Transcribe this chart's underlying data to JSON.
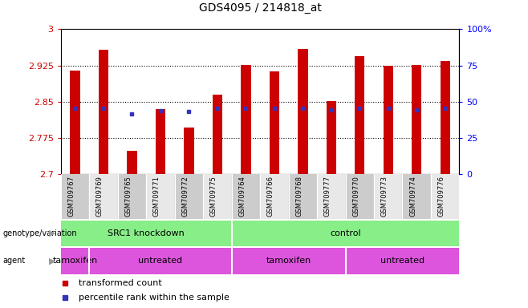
{
  "title": "GDS4095 / 214818_at",
  "samples": [
    "GSM709767",
    "GSM709769",
    "GSM709765",
    "GSM709771",
    "GSM709772",
    "GSM709775",
    "GSM709764",
    "GSM709766",
    "GSM709768",
    "GSM709777",
    "GSM709770",
    "GSM709773",
    "GSM709774",
    "GSM709776"
  ],
  "bar_values": [
    2.915,
    2.957,
    2.748,
    2.835,
    2.797,
    2.865,
    2.926,
    2.913,
    2.959,
    2.852,
    2.945,
    2.925,
    2.926,
    2.935
  ],
  "blue_values": [
    2.836,
    2.836,
    2.824,
    2.832,
    2.83,
    2.836,
    2.836,
    2.836,
    2.836,
    2.833,
    2.836,
    2.836,
    2.833,
    2.836
  ],
  "ymin": 2.7,
  "ymax": 3.0,
  "yticks": [
    2.7,
    2.775,
    2.85,
    2.925,
    3.0
  ],
  "ytick_labels": [
    "2.7",
    "2.775",
    "2.85",
    "2.925",
    "3"
  ],
  "right_ytick_labels": [
    "0",
    "25",
    "50",
    "75",
    "100%"
  ],
  "bar_color": "#cc0000",
  "blue_color": "#3333bb",
  "bar_width": 0.35,
  "genotype_groups": [
    {
      "label": "SRC1 knockdown",
      "start": 0,
      "end": 6
    },
    {
      "label": "control",
      "start": 6,
      "end": 14
    }
  ],
  "agent_groups": [
    {
      "label": "tamoxifen",
      "start": 0,
      "end": 1
    },
    {
      "label": "untreated",
      "start": 1,
      "end": 6
    },
    {
      "label": "tamoxifen",
      "start": 6,
      "end": 10
    },
    {
      "label": "untreated",
      "start": 10,
      "end": 14
    }
  ],
  "geno_color": "#88ee88",
  "agent_color": "#dd55dd",
  "grid_color": "#000000",
  "plot_bg": "#ffffff",
  "tick_bg_even": "#cccccc",
  "tick_bg_odd": "#e8e8e8"
}
